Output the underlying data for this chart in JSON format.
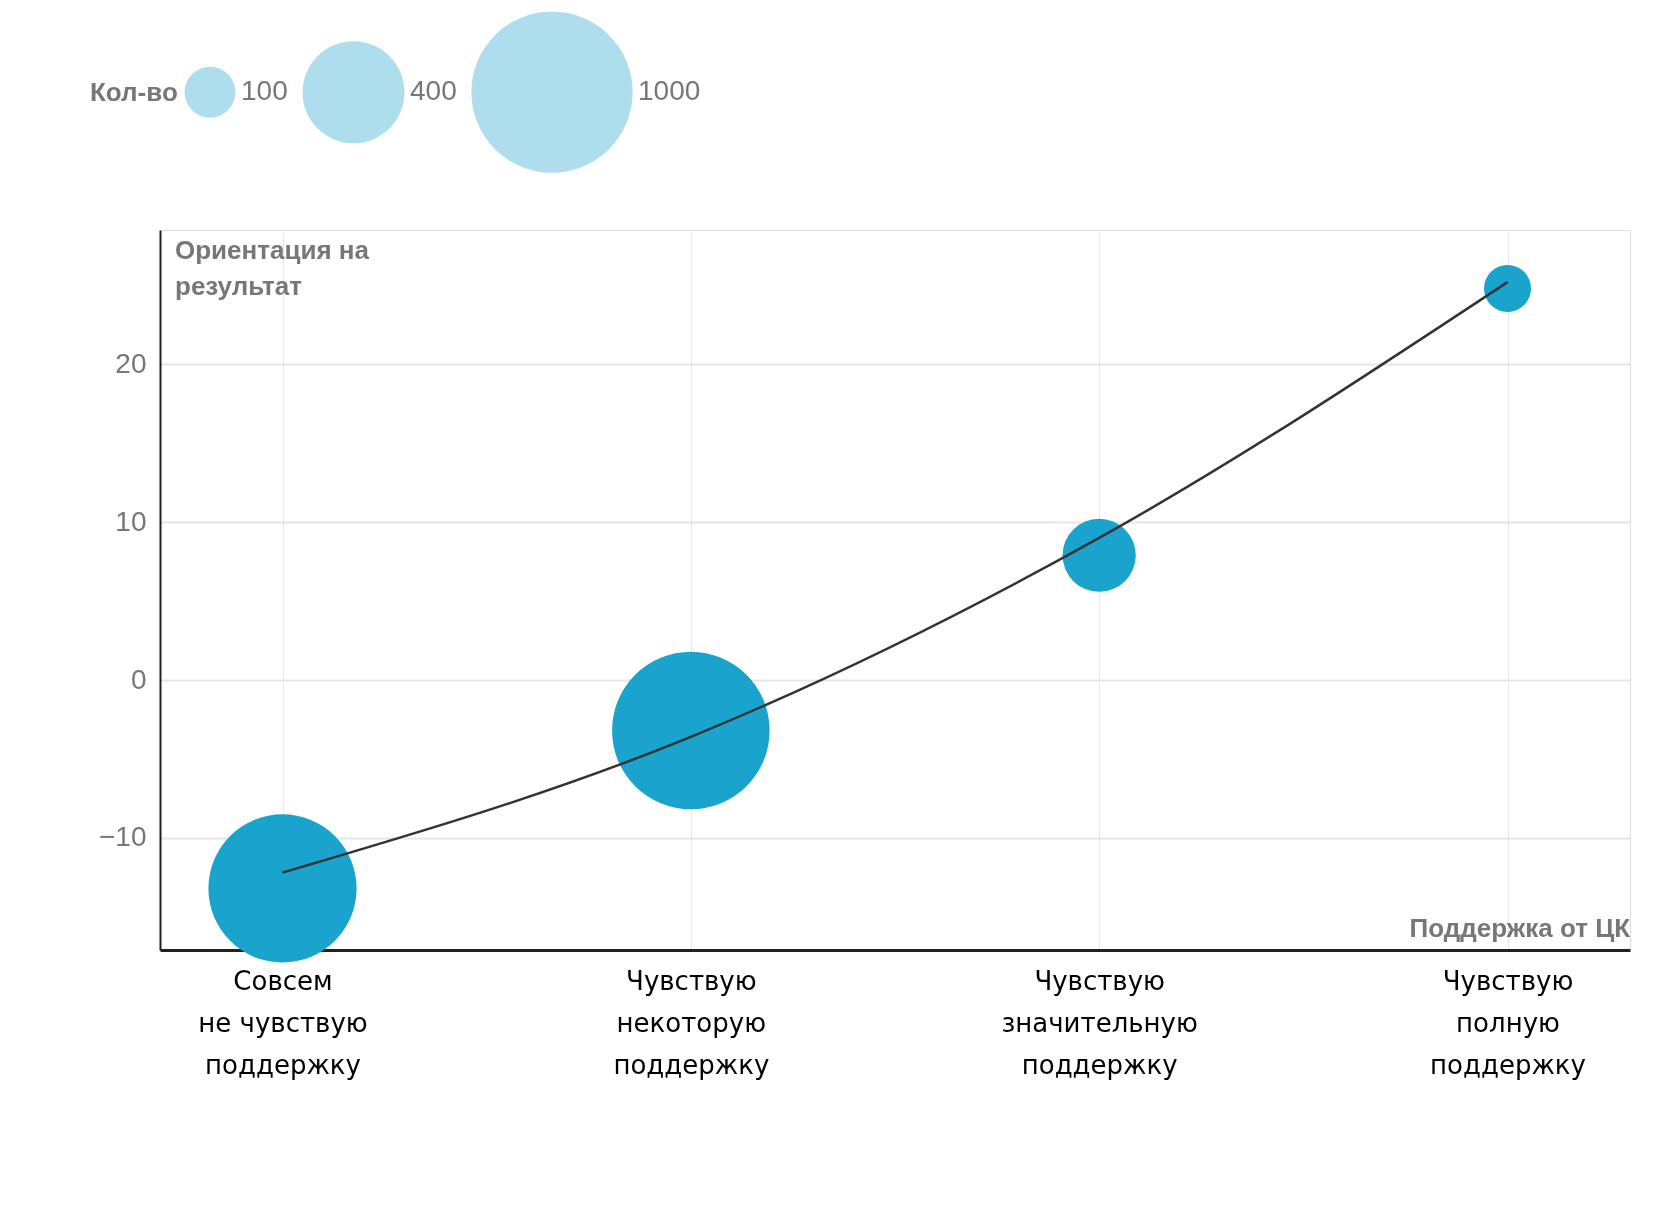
{
  "chart_data": {
    "type": "bubble",
    "xlabel": "Поддержка от ЦК",
    "ylabel": "Ориентация на результат",
    "legend_title": "Кол-во",
    "categories": [
      "Совсем\nне чувствую\nподдержку",
      "Чувствую\nнекоторую\nподдержку",
      "Чувствую\nзначительную\nподдержку",
      "Чувствую\nполную\nподдержку"
    ],
    "ylim": [
      -17.1,
      28.5
    ],
    "yticks": [
      -10,
      0,
      10,
      20
    ],
    "grid": true,
    "size_legend": [
      100,
      400,
      1000
    ],
    "series": [
      {
        "color": "#1aa3cc",
        "values": [
          -13.2,
          -3.2,
          7.9,
          24.8
        ],
        "sizes": [
          844,
          954,
          206,
          85
        ]
      },
      {
        "type": "line",
        "color": "#333333",
        "marker": "none",
        "values": [
          -12.2,
          -3.6,
          9.0,
          25.2
        ]
      }
    ]
  }
}
